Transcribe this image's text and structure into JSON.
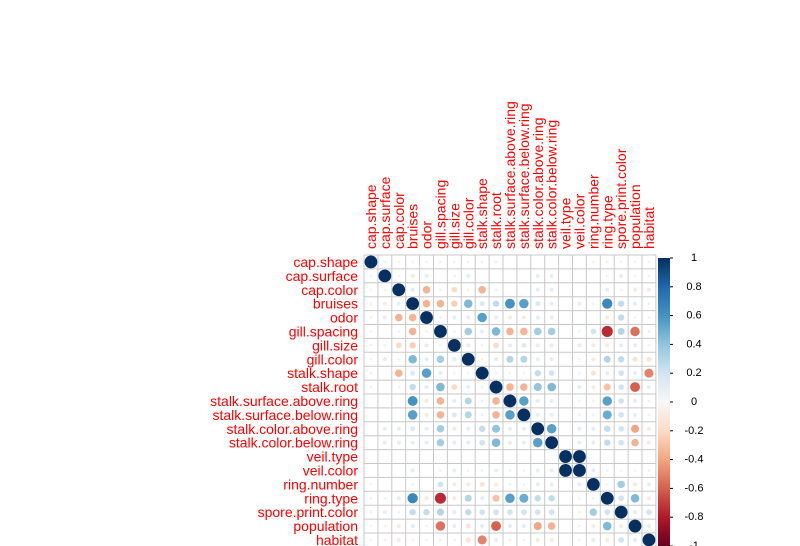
{
  "chart_data": {
    "type": "heatmap",
    "title": "",
    "variables": [
      "cap.shape",
      "cap.surface",
      "cap.color",
      "bruises",
      "odor",
      "gill.spacing",
      "gill.size",
      "gill.color",
      "stalk.shape",
      "stalk.root",
      "stalk.surface.above.ring",
      "stalk.surface.below.ring",
      "stalk.color.above.ring",
      "stalk.color.below.ring",
      "veil.type",
      "veil.color",
      "ring.number",
      "ring.type",
      "spore.print.color",
      "population",
      "habitat"
    ],
    "matrix": [
      [
        1,
        0.05,
        -0.05,
        -0.05,
        -0.05,
        0.05,
        0.05,
        -0.05,
        0.05,
        -0.05,
        0,
        0,
        0,
        0,
        0,
        0,
        -0.05,
        -0.05,
        -0.05,
        0.05,
        -0.05
      ],
      [
        0.05,
        1,
        -0.05,
        -0.1,
        0.1,
        0,
        0.05,
        0.1,
        0,
        0,
        0,
        0,
        0.1,
        0.1,
        0,
        0,
        0,
        0.05,
        0.1,
        0.05,
        0.05
      ],
      [
        -0.05,
        -0.05,
        1,
        0.1,
        -0.35,
        -0.05,
        -0.2,
        -0.05,
        -0.35,
        0.05,
        0,
        0,
        0.1,
        0.1,
        0,
        0,
        0,
        0.1,
        0.05,
        -0.1,
        -0.1
      ],
      [
        -0.05,
        -0.1,
        0.1,
        1,
        -0.35,
        -0.35,
        -0.25,
        0.45,
        0.15,
        0.25,
        0.6,
        0.55,
        0.15,
        0.1,
        0,
        0.1,
        -0.05,
        0.65,
        0.25,
        0.1,
        -0.05
      ],
      [
        -0.05,
        0.1,
        -0.35,
        -0.35,
        1,
        -0.05,
        0.1,
        0.1,
        0.55,
        0.1,
        -0.1,
        -0.1,
        0.1,
        0.1,
        0,
        0,
        0,
        -0.1,
        0.25,
        -0.05,
        -0.05
      ],
      [
        0.05,
        0,
        -0.05,
        -0.35,
        -0.05,
        1,
        0.05,
        0.35,
        0.1,
        0.45,
        -0.35,
        -0.35,
        0.35,
        0.35,
        0,
        0.05,
        0.2,
        -0.75,
        0.3,
        -0.55,
        0.05
      ],
      [
        0.05,
        0.05,
        -0.2,
        -0.25,
        0.1,
        0.05,
        1,
        0.1,
        -0.05,
        -0.2,
        0.1,
        0.15,
        -0.1,
        0.1,
        0,
        0.1,
        -0.1,
        -0.1,
        0.1,
        0.1,
        -0.05
      ],
      [
        -0.05,
        0.1,
        -0.05,
        0.45,
        0.1,
        0.35,
        0.1,
        1,
        0.05,
        0.1,
        0.3,
        0.3,
        0.1,
        0.1,
        0,
        0.05,
        -0.1,
        0.3,
        0.25,
        -0.15,
        -0.15
      ],
      [
        0.05,
        0,
        -0.35,
        0.15,
        0.55,
        0.1,
        -0.05,
        0.05,
        1,
        0.05,
        0.05,
        0.05,
        0.25,
        0.2,
        0,
        0.05,
        -0.15,
        0.1,
        0.2,
        0.1,
        -0.5
      ],
      [
        -0.05,
        0,
        0.05,
        0.25,
        0.1,
        0.45,
        -0.2,
        0.1,
        0.05,
        1,
        -0.35,
        -0.35,
        0.4,
        0.45,
        0,
        0.1,
        -0.1,
        -0.3,
        0.2,
        -0.6,
        0.1
      ],
      [
        0,
        0,
        0,
        0.6,
        -0.1,
        -0.35,
        0.1,
        0.3,
        0.05,
        -0.35,
        1,
        0.55,
        0.1,
        0.1,
        0,
        0.05,
        0.05,
        0.55,
        0.2,
        0.1,
        -0.05
      ],
      [
        0,
        0,
        0,
        0.55,
        -0.1,
        -0.35,
        0.15,
        0.3,
        0.05,
        -0.35,
        0.55,
        1,
        0.1,
        0.1,
        0,
        0.05,
        0.05,
        0.5,
        0.2,
        0.1,
        -0.05
      ],
      [
        0,
        0.1,
        0.1,
        0.15,
        0.1,
        0.35,
        -0.1,
        0.1,
        0.25,
        0.4,
        0.1,
        0.1,
        1,
        0.55,
        0,
        0.1,
        0.1,
        0.25,
        0.2,
        -0.4,
        -0.1
      ],
      [
        0,
        0.1,
        0.1,
        0.1,
        0.1,
        0.35,
        0.1,
        0.1,
        0.2,
        0.45,
        0.1,
        0.1,
        0.55,
        1,
        0,
        0.1,
        0.1,
        0.25,
        0.2,
        -0.35,
        -0.1
      ],
      [
        0,
        0,
        0,
        0,
        0,
        0,
        0,
        0,
        0,
        0,
        0,
        0,
        0,
        0,
        1,
        1,
        0,
        0,
        0,
        0,
        0
      ],
      [
        0,
        0,
        0,
        0.1,
        0,
        0.05,
        0.1,
        0.05,
        0.05,
        0.1,
        0.05,
        0.05,
        0.1,
        0.1,
        1,
        1,
        0.1,
        0.05,
        -0.05,
        0.05,
        0.05
      ],
      [
        -0.05,
        0,
        0,
        -0.05,
        0,
        0.2,
        -0.1,
        -0.1,
        -0.15,
        -0.1,
        0.05,
        0.05,
        0.1,
        0.1,
        0,
        0.1,
        1,
        0.05,
        0.35,
        -0.1,
        0.1
      ],
      [
        -0.05,
        0.05,
        0.1,
        0.65,
        -0.1,
        -0.75,
        -0.1,
        0.3,
        0.1,
        -0.3,
        0.55,
        0.5,
        0.25,
        0.25,
        0,
        0.05,
        0.05,
        1,
        0.2,
        0.45,
        -0.1
      ],
      [
        -0.05,
        0.1,
        0.05,
        0.25,
        0.25,
        0.3,
        0.1,
        0.25,
        0.2,
        0.2,
        0.2,
        0.2,
        0.2,
        0.2,
        0,
        -0.05,
        0.35,
        0.2,
        1,
        -0.1,
        0.2
      ],
      [
        0.05,
        0.05,
        -0.1,
        0.1,
        -0.05,
        -0.55,
        0.1,
        -0.15,
        0.1,
        -0.6,
        0.1,
        0.1,
        -0.4,
        -0.35,
        0,
        0.05,
        -0.1,
        0.45,
        -0.1,
        1,
        0.1
      ],
      [
        -0.05,
        0.05,
        -0.1,
        -0.05,
        -0.05,
        0.05,
        -0.05,
        -0.15,
        -0.5,
        0.1,
        -0.05,
        -0.05,
        -0.1,
        -0.1,
        0,
        0.05,
        0.1,
        -0.1,
        0.2,
        0.1,
        1
      ]
    ],
    "colorbar": {
      "range": [
        -1,
        1
      ],
      "ticks": [
        "1",
        "0.8",
        "0.6",
        "0.4",
        "0.2",
        "0",
        "-0.2",
        "-0.4",
        "-0.6",
        "-0.8",
        "-1"
      ],
      "colors": {
        "neg": "#67001f",
        "mid": "#f7f7f7",
        "pos": "#053061"
      }
    },
    "label_color": "#ff0000",
    "grid": true
  }
}
